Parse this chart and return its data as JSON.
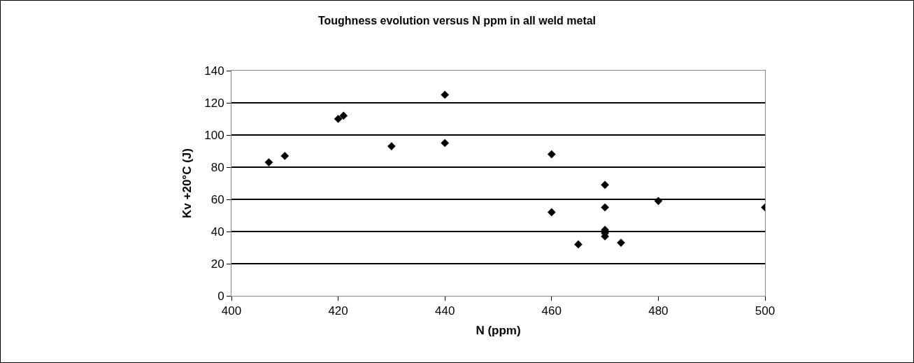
{
  "chart_data": {
    "type": "scatter",
    "title": "Toughness evolution versus N ppm in all weld metal",
    "xlabel": "N (ppm)",
    "ylabel": "Kv +20°C (J)",
    "x": [
      407,
      410,
      420,
      421,
      430,
      440,
      440,
      460,
      460,
      465,
      470,
      470,
      470,
      470,
      470,
      473,
      480,
      500
    ],
    "values": [
      83,
      87,
      110,
      112,
      93,
      125,
      95,
      88,
      52,
      32,
      69,
      55,
      41,
      39,
      37,
      33,
      59,
      55
    ],
    "color": "#000000",
    "marker": "diamond",
    "xlim": [
      400,
      500
    ],
    "xticks": [
      400,
      420,
      440,
      460,
      480,
      500
    ],
    "ylim": [
      0,
      140
    ],
    "yticks": [
      0,
      20,
      40,
      60,
      80,
      100,
      120,
      140
    ],
    "grid": "y"
  }
}
